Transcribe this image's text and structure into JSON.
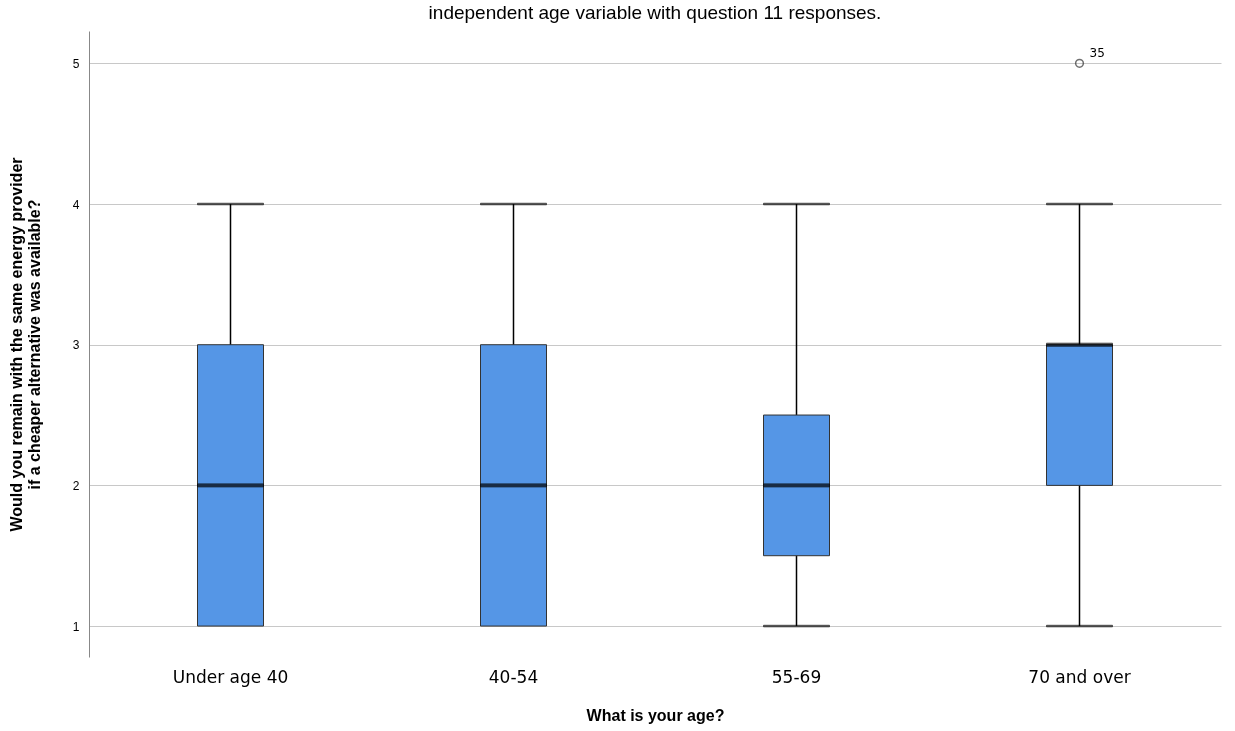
{
  "chart_data": {
    "type": "box",
    "title": "independent age variable with question 11 responses.",
    "xlabel": "What is your age?",
    "ylabel": "Would you remain with the same energy provider\nif a cheaper alternative was available?",
    "categories": [
      "Under age 40",
      "40-54",
      "55-69",
      "70 and over"
    ],
    "series": [
      {
        "color": "#5596e6",
        "boxes": [
          {
            "low": 1,
            "q1": 1,
            "median": 2,
            "q3": 3,
            "high": 4
          },
          {
            "low": 1,
            "q1": 1,
            "median": 2,
            "q3": 3,
            "high": 4
          },
          {
            "low": 1,
            "q1": 1.5,
            "median": 2,
            "q3": 2.5,
            "high": 4
          },
          {
            "low": 1,
            "q1": 2,
            "median": 3,
            "q3": 3,
            "high": 4,
            "outliers": [
              5
            ]
          }
        ]
      }
    ],
    "ylim": [
      0.78,
      5.23
    ],
    "yticks": [
      1,
      2,
      3,
      4,
      5
    ],
    "grid": "y",
    "annotations": [
      "35"
    ]
  }
}
